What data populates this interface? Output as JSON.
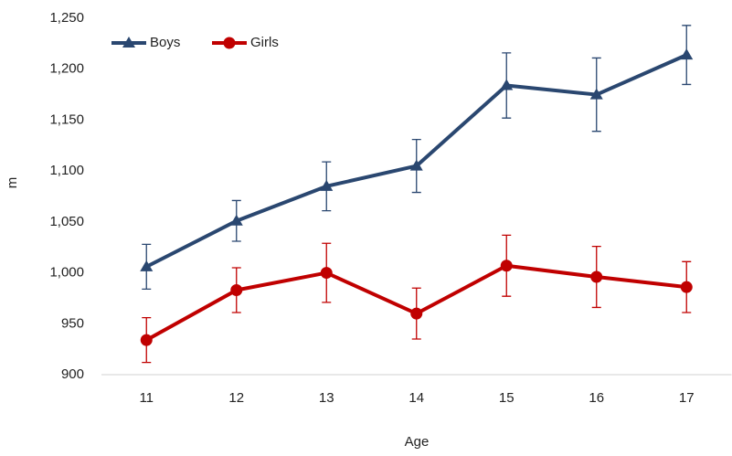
{
  "chart_data": {
    "type": "line",
    "x_label": "Age",
    "y_label": "m",
    "categories": [
      "11",
      "12",
      "13",
      "14",
      "15",
      "16",
      "17"
    ],
    "series": [
      {
        "name": "Boys",
        "color": "#2a4770",
        "marker": "triangle",
        "values": [
          1006,
          1051,
          1085,
          1105,
          1184,
          1175,
          1214
        ],
        "errors": [
          22,
          20,
          24,
          26,
          32,
          36,
          29
        ]
      },
      {
        "name": "Girls",
        "color": "#c00000",
        "marker": "circle",
        "values": [
          934,
          983,
          1000,
          960,
          1007,
          996,
          986
        ],
        "errors": [
          22,
          22,
          29,
          25,
          30,
          30,
          25
        ]
      }
    ],
    "ylim": [
      900,
      1250
    ],
    "yticks": [
      900,
      950,
      {
        "value": 1000,
        "label": "1,000"
      },
      {
        "value": 1050,
        "label": "1,050"
      },
      {
        "value": 1100,
        "label": "1,100"
      },
      {
        "value": 1150,
        "label": "1,150"
      },
      {
        "value": 1200,
        "label": "1,200"
      },
      {
        "value": 1250,
        "label": "1,250"
      }
    ],
    "grid": false,
    "legend": "top-left"
  }
}
